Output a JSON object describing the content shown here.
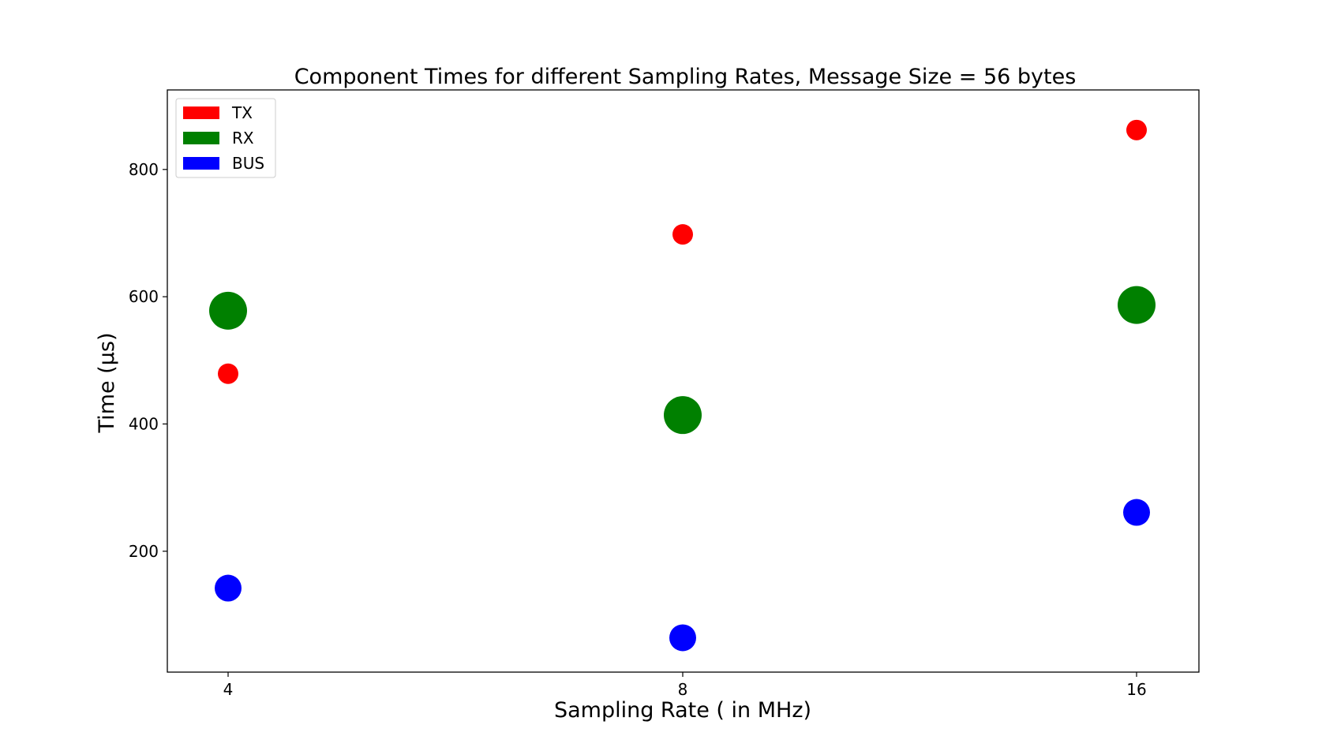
{
  "chart_data": {
    "type": "scatter",
    "title": "Component Times for different Sampling Rates, Message Size = 56 bytes",
    "xlabel": "Sampling Rate ( in MHz)",
    "ylabel": "Time (μs)",
    "x_tick_labels": [
      "4",
      "8",
      "16"
    ],
    "y_ticks": [
      200,
      400,
      600,
      800
    ],
    "ylim": [
      10,
      925
    ],
    "grid": false,
    "legend": {
      "position": "top-left",
      "entries": [
        "TX",
        "RX",
        "BUS"
      ]
    },
    "series": [
      {
        "name": "TX",
        "color": "#ff0000",
        "values": [
          479,
          698,
          862
        ]
      },
      {
        "name": "RX",
        "color": "#008000",
        "values": [
          578,
          414,
          587
        ]
      },
      {
        "name": "BUS",
        "color": "#0000ff",
        "values": [
          142,
          64,
          261
        ]
      }
    ]
  }
}
